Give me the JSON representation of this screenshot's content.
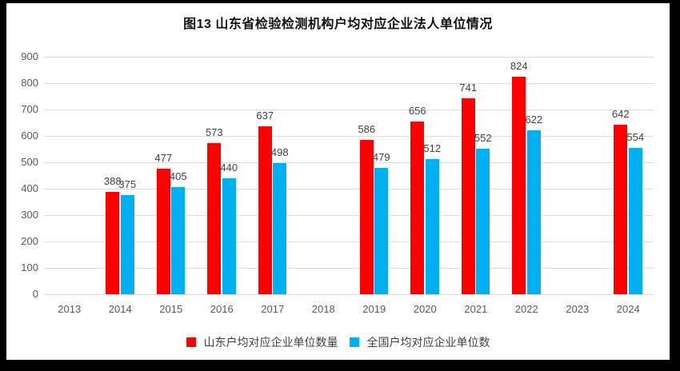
{
  "chart": {
    "title": "图13 山东省检验检测机构户均对应企业法人单位情况"
  },
  "chart_data": {
    "type": "bar",
    "title": "图13 山东省检验检测机构户均对应企业法人单位情况",
    "categories": [
      "2013",
      "2014",
      "2015",
      "2016",
      "2017",
      "2018",
      "2019",
      "2020",
      "2021",
      "2022",
      "2023",
      "2024"
    ],
    "series": [
      {
        "name": "山东户均对应企业单位数量",
        "color": "#FF0000",
        "values": [
          null,
          388,
          477,
          573,
          637,
          null,
          586,
          656,
          741,
          824,
          null,
          642
        ]
      },
      {
        "name": "全国户均对应企业单位数",
        "color": "#00B0F0",
        "values": [
          null,
          375,
          405,
          440,
          498,
          null,
          479,
          512,
          552,
          622,
          null,
          554
        ]
      }
    ],
    "ylim": [
      0,
      900
    ],
    "ytick_step": 100,
    "grid": true,
    "data_labels": true,
    "legend_position": "bottom",
    "xlabel": "",
    "ylabel": ""
  }
}
